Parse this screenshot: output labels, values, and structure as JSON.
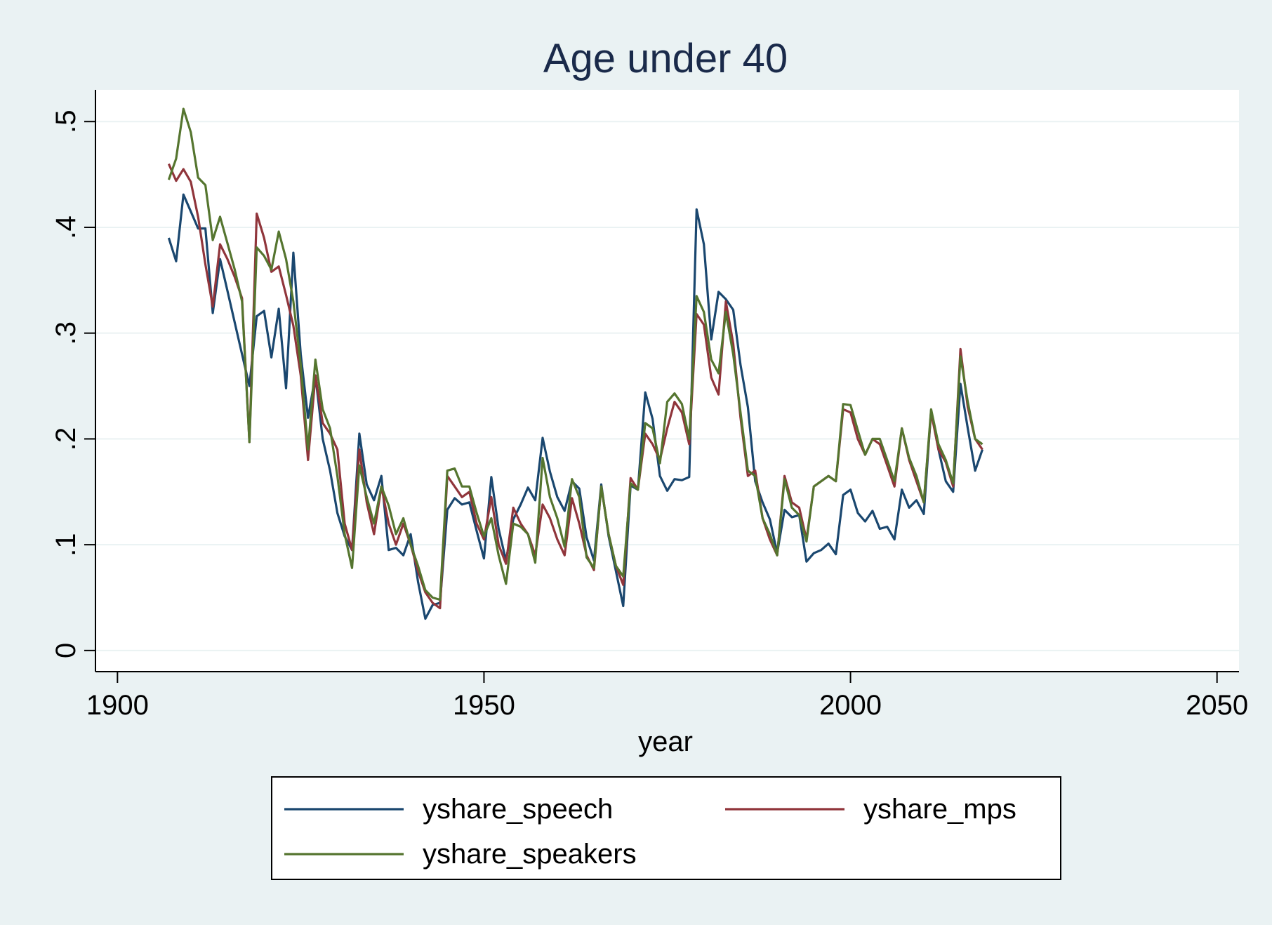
{
  "chart_data": {
    "type": "line",
    "title": "Age under 40",
    "xlabel": "year",
    "ylabel": "",
    "xlim": [
      1897,
      2053
    ],
    "ylim": [
      -0.02,
      0.53
    ],
    "xticks": [
      1900,
      1950,
      2000,
      2050
    ],
    "xtick_labels": [
      "1900",
      "1950",
      "2000",
      "2050"
    ],
    "yticks": [
      0,
      0.1,
      0.2,
      0.3,
      0.4,
      0.5
    ],
    "ytick_labels": [
      "0",
      ".1",
      ".2",
      ".3",
      ".4",
      ".5"
    ],
    "grid": true,
    "legend_position": "bottom",
    "colors": {
      "plot_background": "#ffffff",
      "page_background": "#eaf2f3",
      "grid": "#eaf2f3"
    },
    "x": [
      1907,
      1908,
      1909,
      1910,
      1911,
      1912,
      1913,
      1914,
      1915,
      1916,
      1917,
      1918,
      1919,
      1920,
      1921,
      1922,
      1923,
      1924,
      1925,
      1926,
      1927,
      1928,
      1929,
      1930,
      1931,
      1932,
      1933,
      1934,
      1935,
      1936,
      1937,
      1938,
      1939,
      1940,
      1941,
      1942,
      1943,
      1944,
      1945,
      1946,
      1947,
      1948,
      1949,
      1950,
      1951,
      1952,
      1953,
      1954,
      1955,
      1956,
      1957,
      1958,
      1959,
      1960,
      1961,
      1962,
      1963,
      1964,
      1965,
      1966,
      1967,
      1968,
      1969,
      1970,
      1971,
      1972,
      1973,
      1974,
      1975,
      1976,
      1977,
      1978,
      1979,
      1980,
      1981,
      1982,
      1983,
      1984,
      1985,
      1986,
      1987,
      1988,
      1989,
      1990,
      1991,
      1992,
      1993,
      1994,
      1995,
      1996,
      1997,
      1998,
      1999,
      2000,
      2001,
      2002,
      2003,
      2004,
      2005,
      2006,
      2007,
      2008,
      2009,
      2010,
      2011,
      2012,
      2013,
      2014,
      2015,
      2016,
      2017,
      2018
    ],
    "series": [
      {
        "name": "yshare_speech",
        "color": "#1a476f",
        "values": [
          0.39,
          0.368,
          0.431,
          0.415,
          0.399,
          0.399,
          0.319,
          0.37,
          0.34,
          0.31,
          0.28,
          0.25,
          0.316,
          0.321,
          0.277,
          0.323,
          0.248,
          0.376,
          0.28,
          0.22,
          0.26,
          0.2,
          0.17,
          0.13,
          0.108,
          0.095,
          0.205,
          0.157,
          0.142,
          0.165,
          0.095,
          0.097,
          0.09,
          0.11,
          0.065,
          0.03,
          0.043,
          0.045,
          0.133,
          0.144,
          0.138,
          0.14,
          0.113,
          0.087,
          0.164,
          0.115,
          0.085,
          0.124,
          0.138,
          0.154,
          0.142,
          0.201,
          0.169,
          0.145,
          0.132,
          0.16,
          0.153,
          0.107,
          0.085,
          0.157,
          0.108,
          0.075,
          0.042,
          0.156,
          0.152,
          0.244,
          0.219,
          0.165,
          0.151,
          0.162,
          0.161,
          0.164,
          0.417,
          0.384,
          0.294,
          0.339,
          0.332,
          0.322,
          0.27,
          0.23,
          0.16,
          0.14,
          0.124,
          0.092,
          0.133,
          0.126,
          0.128,
          0.084,
          0.092,
          0.095,
          0.101,
          0.091,
          0.147,
          0.152,
          0.13,
          0.122,
          0.132,
          0.115,
          0.117,
          0.105,
          0.152,
          0.135,
          0.142,
          0.129,
          0.227,
          0.19,
          0.16,
          0.15,
          0.252,
          0.21,
          0.17,
          0.19
        ]
      },
      {
        "name": "yshare_mps",
        "color": "#90353b",
        "values": [
          0.46,
          0.444,
          0.455,
          0.443,
          0.41,
          0.365,
          0.325,
          0.384,
          0.37,
          0.353,
          0.333,
          0.197,
          0.413,
          0.39,
          0.358,
          0.363,
          0.336,
          0.307,
          0.26,
          0.18,
          0.26,
          0.215,
          0.205,
          0.19,
          0.12,
          0.095,
          0.19,
          0.14,
          0.11,
          0.155,
          0.12,
          0.1,
          0.12,
          0.1,
          0.075,
          0.055,
          0.045,
          0.04,
          0.165,
          0.155,
          0.145,
          0.15,
          0.12,
          0.105,
          0.145,
          0.1,
          0.082,
          0.135,
          0.12,
          0.11,
          0.09,
          0.138,
          0.125,
          0.105,
          0.09,
          0.144,
          0.12,
          0.09,
          0.076,
          0.155,
          0.11,
          0.08,
          0.062,
          0.163,
          0.152,
          0.205,
          0.195,
          0.18,
          0.21,
          0.235,
          0.225,
          0.195,
          0.318,
          0.308,
          0.258,
          0.242,
          0.33,
          0.29,
          0.22,
          0.165,
          0.17,
          0.125,
          0.105,
          0.09,
          0.165,
          0.14,
          0.135,
          0.105,
          0.155,
          0.16,
          0.165,
          0.16,
          0.228,
          0.225,
          0.2,
          0.185,
          0.2,
          0.195,
          0.175,
          0.155,
          0.21,
          0.18,
          0.16,
          0.14,
          0.225,
          0.19,
          0.178,
          0.155,
          0.285,
          0.23,
          0.2,
          0.19
        ]
      },
      {
        "name": "yshare_speakers",
        "color": "#55752f",
        "values": [
          0.445,
          0.465,
          0.512,
          0.49,
          0.447,
          0.44,
          0.388,
          0.41,
          0.385,
          0.36,
          0.33,
          0.197,
          0.381,
          0.373,
          0.36,
          0.396,
          0.37,
          0.33,
          0.27,
          0.19,
          0.275,
          0.228,
          0.21,
          0.165,
          0.11,
          0.078,
          0.175,
          0.145,
          0.12,
          0.155,
          0.137,
          0.11,
          0.125,
          0.1,
          0.08,
          0.057,
          0.05,
          0.048,
          0.17,
          0.172,
          0.155,
          0.155,
          0.13,
          0.108,
          0.125,
          0.09,
          0.063,
          0.12,
          0.117,
          0.11,
          0.083,
          0.182,
          0.145,
          0.125,
          0.098,
          0.162,
          0.145,
          0.088,
          0.078,
          0.155,
          0.11,
          0.08,
          0.07,
          0.158,
          0.152,
          0.215,
          0.21,
          0.177,
          0.235,
          0.243,
          0.233,
          0.2,
          0.335,
          0.32,
          0.275,
          0.262,
          0.32,
          0.28,
          0.225,
          0.17,
          0.165,
          0.125,
          0.11,
          0.09,
          0.162,
          0.135,
          0.128,
          0.103,
          0.155,
          0.16,
          0.165,
          0.16,
          0.233,
          0.232,
          0.208,
          0.185,
          0.2,
          0.2,
          0.18,
          0.16,
          0.21,
          0.182,
          0.165,
          0.14,
          0.228,
          0.195,
          0.18,
          0.158,
          0.278,
          0.235,
          0.2,
          0.195
        ]
      }
    ]
  }
}
